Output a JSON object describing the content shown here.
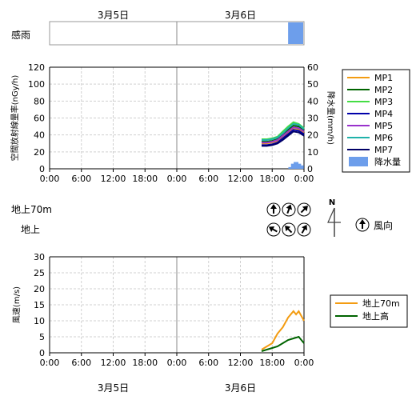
{
  "top_dates": [
    "3月5日",
    "3月6日"
  ],
  "bottom_dates": [
    "3月5日",
    "3月6日"
  ],
  "rain_strip": {
    "label": "感雨",
    "color": "#6d9eeb",
    "active_start_hour": 45,
    "active_end_hour": 48
  },
  "colors": {
    "mp1": "#f39c12",
    "mp2": "#006400",
    "mp3": "#44dd44",
    "mp4": "#0000aa",
    "mp5": "#9932cc",
    "mp6": "#20b2aa",
    "mp7": "#000066",
    "rain": "#6d9eeb",
    "wind70": "#f39c12",
    "windGround": "#006400"
  },
  "wind_direction": {
    "rows": [
      {
        "label": "地上70m",
        "arrows_deg": [
          0,
          20,
          45
        ]
      },
      {
        "label": "地上",
        "arrows_deg": [
          300,
          315,
          30
        ]
      }
    ],
    "north_label": "N",
    "legend_label": "風向"
  },
  "chart_data": [
    {
      "type": "line",
      "ylabel": "空間放射線量率(nGy/h)",
      "y2label": "降水量(mm/h)",
      "ylim": [
        0,
        120
      ],
      "y2lim": [
        0,
        60
      ],
      "yticks": [
        0,
        20,
        40,
        60,
        80,
        100,
        120
      ],
      "y2ticks": [
        0,
        10,
        20,
        30,
        40,
        50,
        60
      ],
      "x_ticks": [
        "0:00",
        "6:00",
        "12:00",
        "18:00",
        "0:00",
        "6:00",
        "12:00",
        "18:00",
        "0:00"
      ],
      "x_hours": [
        0,
        6,
        12,
        18,
        24,
        30,
        36,
        42,
        48
      ],
      "series": [
        {
          "name": "MP1",
          "color": "#f39c12",
          "x": [
            40,
            41,
            42,
            43,
            44,
            45,
            46,
            47,
            48
          ],
          "values": [
            30,
            30,
            31,
            33,
            38,
            43,
            48,
            47,
            43
          ]
        },
        {
          "name": "MP2",
          "color": "#006400",
          "x": [
            40,
            41,
            42,
            43,
            44,
            45,
            46,
            47,
            48
          ],
          "values": [
            32,
            32,
            33,
            35,
            40,
            46,
            51,
            50,
            45
          ]
        },
        {
          "name": "MP3",
          "color": "#44dd44",
          "x": [
            40,
            41,
            42,
            43,
            44,
            45,
            46,
            47,
            48
          ],
          "values": [
            35,
            35,
            36,
            38,
            44,
            50,
            55,
            53,
            48
          ]
        },
        {
          "name": "MP4",
          "color": "#0000aa",
          "x": [
            40,
            41,
            42,
            43,
            44,
            45,
            46,
            47,
            48
          ],
          "values": [
            28,
            28,
            29,
            31,
            36,
            41,
            46,
            45,
            41
          ]
        },
        {
          "name": "MP5",
          "color": "#9932cc",
          "x": [
            40,
            41,
            42,
            43,
            44,
            45,
            46,
            47,
            48
          ],
          "values": [
            31,
            31,
            32,
            34,
            39,
            44,
            49,
            48,
            44
          ]
        },
        {
          "name": "MP6",
          "color": "#20b2aa",
          "x": [
            40,
            41,
            42,
            43,
            44,
            45,
            46,
            47,
            48
          ],
          "values": [
            34,
            34,
            35,
            37,
            42,
            48,
            53,
            52,
            47
          ]
        },
        {
          "name": "MP7",
          "color": "#000066",
          "x": [
            40,
            41,
            42,
            43,
            44,
            45,
            46,
            47,
            48
          ],
          "values": [
            27,
            27,
            28,
            30,
            34,
            39,
            44,
            43,
            39
          ]
        }
      ],
      "bars": {
        "name": "降水量",
        "color": "#6d9eeb",
        "x": [
          45.5,
          46,
          46.5,
          47,
          47.5
        ],
        "values": [
          1,
          3,
          4,
          3,
          2
        ]
      }
    },
    {
      "type": "line",
      "ylabel": "風速(m/s)",
      "ylim": [
        0,
        30
      ],
      "yticks": [
        0,
        5,
        10,
        15,
        20,
        25,
        30
      ],
      "x_ticks": [
        "0:00",
        "6:00",
        "12:00",
        "18:00",
        "0:00",
        "6:00",
        "12:00",
        "18:00",
        "0:00"
      ],
      "x_hours": [
        0,
        6,
        12,
        18,
        24,
        30,
        36,
        42,
        48
      ],
      "series": [
        {
          "name": "地上70m",
          "color": "#f39c12",
          "x": [
            40,
            41,
            42,
            43,
            44,
            45,
            46,
            46.5,
            47,
            48
          ],
          "values": [
            1,
            2,
            3,
            6,
            8,
            11,
            13,
            12,
            13,
            10
          ]
        },
        {
          "name": "地上高",
          "color": "#006400",
          "x": [
            40,
            41,
            42,
            43,
            44,
            45,
            46,
            47,
            48
          ],
          "values": [
            0.5,
            1,
            1.5,
            2,
            3,
            4,
            4.5,
            5,
            3
          ]
        }
      ]
    }
  ]
}
